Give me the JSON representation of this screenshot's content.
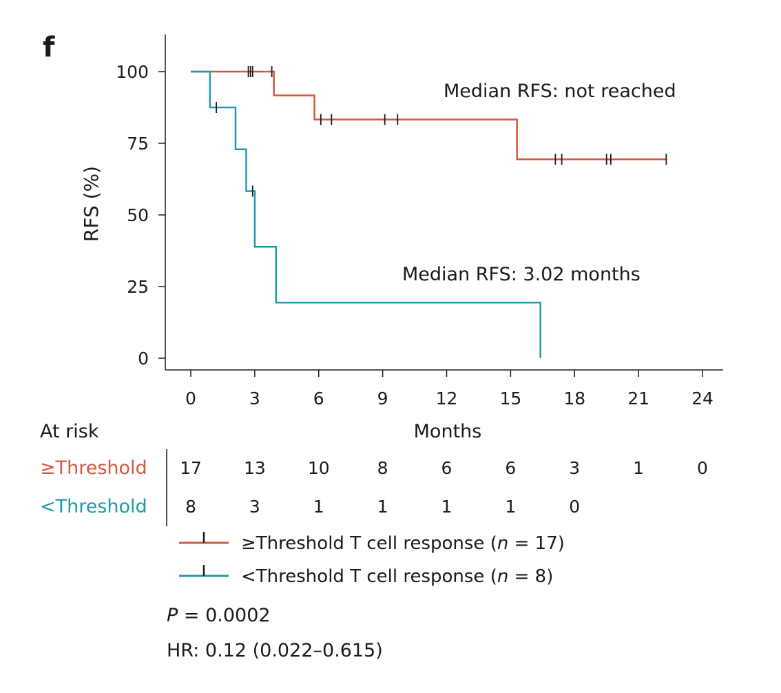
{
  "chart_data": {
    "type": "line",
    "panel_label": "f",
    "ylabel": "RFS (%)",
    "xlabel": "Months",
    "xlim": [
      -1,
      24.8
    ],
    "ylim": [
      0,
      110
    ],
    "x_ticks": [
      0,
      3,
      6,
      9,
      12,
      15,
      18,
      21,
      24
    ],
    "y_ticks": [
      0,
      25,
      50,
      75,
      100
    ],
    "grid": false,
    "colors": {
      "above": "#cf5a3f",
      "below": "#1f9aaa"
    },
    "series": [
      {
        "name": "≥Threshold T cell response",
        "n_text": "17",
        "steps": [
          [
            0,
            100
          ],
          [
            3.9,
            100
          ],
          [
            3.9,
            91.7
          ],
          [
            5.8,
            91.7
          ],
          [
            5.8,
            83.3
          ],
          [
            15.3,
            83.3
          ],
          [
            15.3,
            69.4
          ],
          [
            22.3,
            69.4
          ]
        ],
        "censor_x": [
          2.7,
          2.8,
          2.9,
          3.8,
          6.1,
          6.6,
          9.1,
          9.7,
          17.1,
          17.4,
          19.5,
          19.7,
          22.3
        ],
        "median_text": "Median RFS: not reached"
      },
      {
        "name": "<Threshold T cell response",
        "n_text": "8",
        "steps": [
          [
            0,
            100
          ],
          [
            0.9,
            100
          ],
          [
            0.9,
            87.5
          ],
          [
            2.1,
            87.5
          ],
          [
            2.1,
            72.9
          ],
          [
            2.6,
            72.9
          ],
          [
            2.6,
            58.3
          ],
          [
            3.0,
            58.3
          ],
          [
            3.0,
            38.9
          ],
          [
            4.0,
            38.9
          ],
          [
            4.0,
            19.4
          ],
          [
            16.4,
            19.4
          ],
          [
            16.4,
            0
          ]
        ],
        "censor_x": [
          1.2,
          2.9
        ],
        "median_text": "Median RFS: 3.02 months"
      }
    ],
    "at_risk": {
      "title": "At risk",
      "rows": [
        {
          "label": "≥Threshold",
          "values": [
            "17",
            "13",
            "10",
            "8",
            "6",
            "6",
            "3",
            "1",
            "0"
          ]
        },
        {
          "label": "<Threshold",
          "values": [
            "8",
            "3",
            "1",
            "1",
            "1",
            "1",
            "0"
          ]
        }
      ]
    },
    "stats": {
      "p_label": "P",
      "p_value": " = 0.0002",
      "hr": "HR: 0.12 (0.022–0.615)"
    }
  }
}
